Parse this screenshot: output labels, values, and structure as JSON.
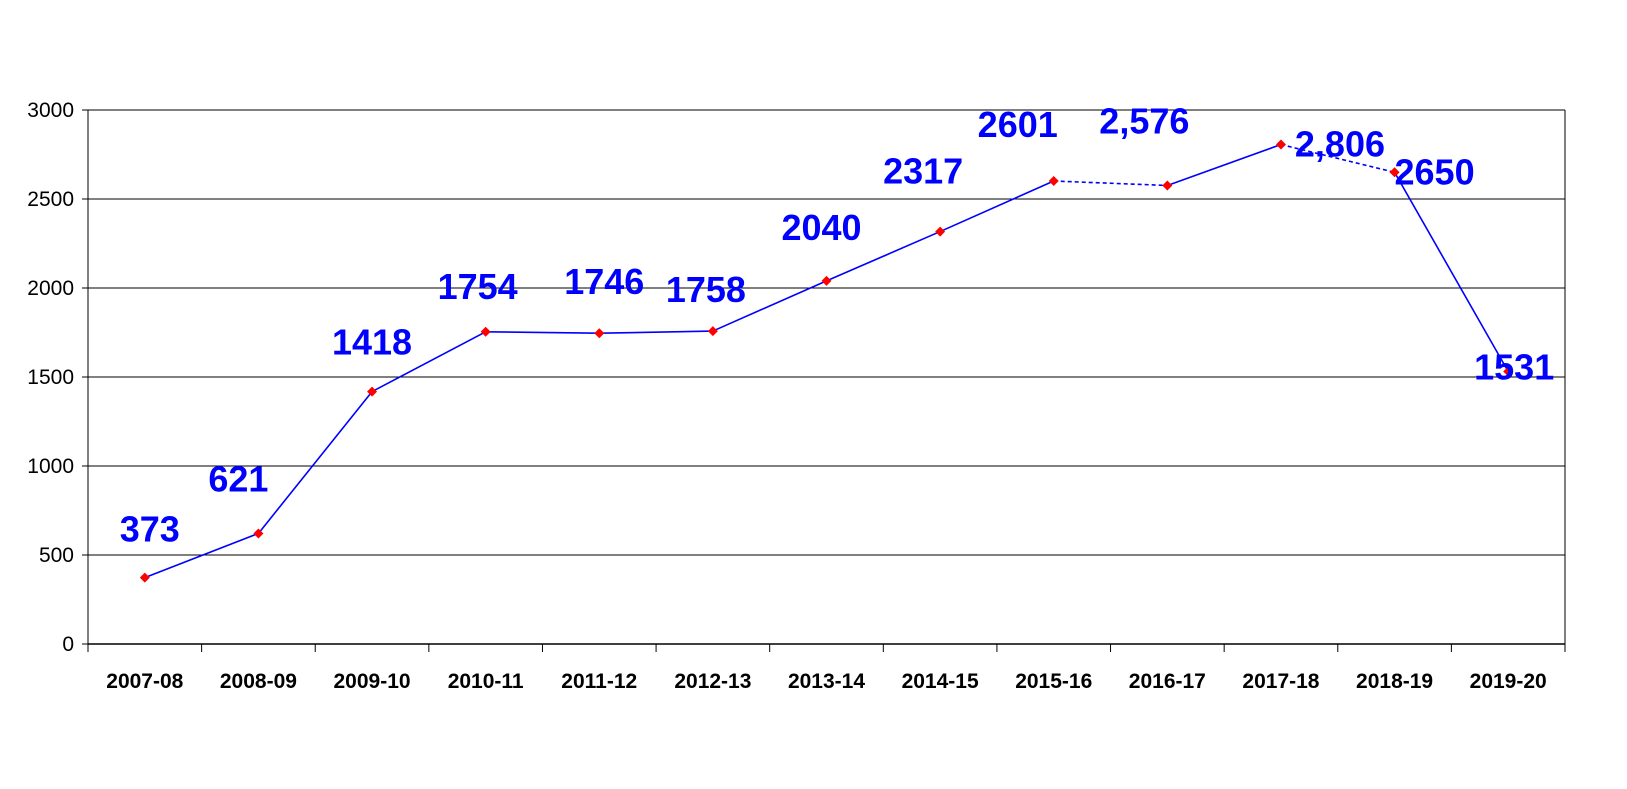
{
  "chart_data": {
    "type": "line",
    "categories": [
      "2007-08",
      "2008-09",
      "2009-10",
      "2010-11",
      "2011-12",
      "2012-13",
      "2013-14",
      "2014-15",
      "2015-16",
      "2016-17",
      "2017-18",
      "2018-19",
      "2019-20"
    ],
    "series": [
      {
        "values": [
          373,
          621,
          1418,
          1754,
          1746,
          1758,
          2040,
          2317,
          2601,
          2576,
          2806,
          2650,
          1531
        ],
        "data_labels": [
          "373",
          "621",
          "1418",
          "1754",
          "1746",
          "1758",
          "2040",
          "2317",
          "2601",
          "2,576",
          "2,806",
          "2650",
          "1531"
        ],
        "line_color": "#0000ff",
        "marker_color": "#ff0000",
        "marker": "diamond",
        "dashed_segments": [
          "2015-16 to 2016-17",
          "2017-18 to 2018-19"
        ]
      }
    ],
    "yticks": [
      "0",
      "500",
      "1000",
      "1500",
      "2000",
      "2500",
      "3000"
    ],
    "ylim": [
      0,
      3000
    ],
    "grid": "horizontal",
    "legend": "none",
    "label_color": "#0000ff"
  }
}
